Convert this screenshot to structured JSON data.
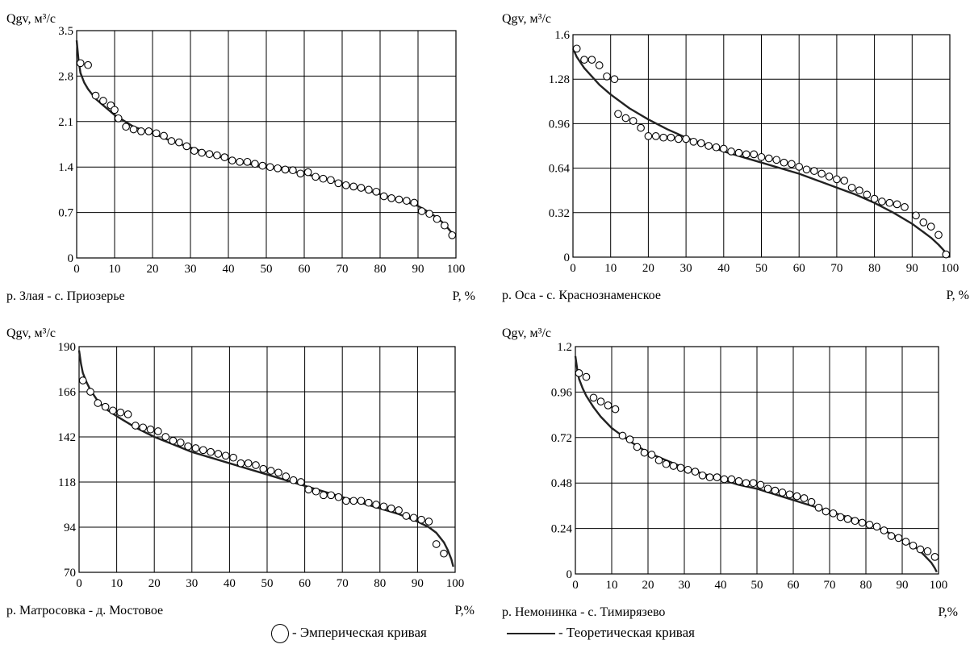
{
  "chart_data": [
    {
      "type": "scatter",
      "station": "р. Злая - с. Приозерье",
      "ylabel": "Qgv, м³/с",
      "xlabel": "P, %",
      "xlim": [
        0,
        100
      ],
      "ylim": [
        0,
        3.5
      ],
      "x_ticks": [
        0,
        10,
        20,
        30,
        40,
        50,
        60,
        70,
        80,
        90,
        100
      ],
      "y_ticks": [
        "0",
        "0.7",
        "1.4",
        "2.1",
        "2.8",
        "3.5"
      ],
      "grid": true,
      "series": [
        {
          "name": "Эмперическая кривая",
          "kind": "points",
          "x": [
            1,
            3,
            5,
            7,
            9,
            10,
            11,
            13,
            15,
            17,
            19,
            21,
            23,
            25,
            27,
            29,
            31,
            33,
            35,
            37,
            39,
            41,
            43,
            45,
            47,
            49,
            51,
            53,
            55,
            57,
            59,
            61,
            63,
            65,
            67,
            69,
            71,
            73,
            75,
            77,
            79,
            81,
            83,
            85,
            87,
            89,
            91,
            93,
            95,
            97,
            99
          ],
          "y": [
            3.0,
            2.97,
            2.5,
            2.42,
            2.35,
            2.28,
            2.15,
            2.02,
            1.98,
            1.95,
            1.95,
            1.92,
            1.88,
            1.8,
            1.78,
            1.72,
            1.65,
            1.62,
            1.6,
            1.58,
            1.55,
            1.5,
            1.48,
            1.48,
            1.45,
            1.42,
            1.4,
            1.38,
            1.36,
            1.35,
            1.3,
            1.32,
            1.25,
            1.22,
            1.2,
            1.15,
            1.12,
            1.1,
            1.08,
            1.05,
            1.02,
            0.95,
            0.92,
            0.9,
            0.88,
            0.85,
            0.72,
            0.68,
            0.6,
            0.5,
            0.35
          ]
        },
        {
          "name": "Теоретическая кривая",
          "kind": "line",
          "x": [
            0,
            0.5,
            1,
            2,
            3,
            5,
            7,
            10,
            15,
            20,
            25,
            30,
            35,
            40,
            45,
            50,
            55,
            60,
            65,
            70,
            75,
            80,
            85,
            90,
            93,
            95,
            97,
            98,
            99,
            99.5
          ],
          "y": [
            3.35,
            3.05,
            2.85,
            2.7,
            2.6,
            2.45,
            2.35,
            2.2,
            2.02,
            1.92,
            1.8,
            1.7,
            1.6,
            1.52,
            1.45,
            1.4,
            1.35,
            1.3,
            1.22,
            1.15,
            1.07,
            0.98,
            0.9,
            0.8,
            0.7,
            0.62,
            0.52,
            0.45,
            0.38,
            0.3
          ]
        }
      ]
    },
    {
      "type": "scatter",
      "station": "р. Оса - с. Краснознаменское",
      "ylabel": "Qgv, м³/с",
      "xlabel": "P, %",
      "xlim": [
        0,
        100
      ],
      "ylim": [
        0,
        1.6
      ],
      "x_ticks": [
        0,
        10,
        20,
        30,
        40,
        50,
        60,
        70,
        80,
        90,
        100
      ],
      "y_ticks": [
        "0",
        "0.32",
        "0.64",
        "0.96",
        "1.28",
        "1.6"
      ],
      "grid": true,
      "series": [
        {
          "name": "Эмперическая кривая",
          "kind": "points",
          "x": [
            1,
            3,
            5,
            7,
            9,
            11,
            12,
            14,
            16,
            18,
            20,
            22,
            24,
            26,
            28,
            30,
            32,
            34,
            36,
            38,
            40,
            42,
            44,
            46,
            48,
            50,
            52,
            54,
            56,
            58,
            60,
            62,
            64,
            66,
            68,
            70,
            72,
            74,
            76,
            78,
            80,
            82,
            84,
            86,
            88,
            91,
            93,
            95,
            97,
            99
          ],
          "y": [
            1.5,
            1.42,
            1.42,
            1.38,
            1.3,
            1.28,
            1.03,
            1.0,
            0.98,
            0.93,
            0.87,
            0.87,
            0.86,
            0.86,
            0.85,
            0.85,
            0.83,
            0.82,
            0.8,
            0.79,
            0.78,
            0.76,
            0.75,
            0.74,
            0.74,
            0.72,
            0.71,
            0.7,
            0.68,
            0.67,
            0.65,
            0.63,
            0.62,
            0.6,
            0.58,
            0.56,
            0.55,
            0.5,
            0.48,
            0.45,
            0.42,
            0.4,
            0.39,
            0.38,
            0.36,
            0.3,
            0.25,
            0.22,
            0.16,
            0.02
          ]
        },
        {
          "name": "Теоретическая кривая",
          "kind": "line",
          "x": [
            0,
            1,
            2,
            3,
            5,
            7,
            10,
            15,
            20,
            25,
            30,
            35,
            40,
            45,
            50,
            55,
            60,
            65,
            70,
            75,
            80,
            85,
            90,
            93,
            95,
            97,
            98,
            99,
            99.5
          ],
          "y": [
            1.5,
            1.44,
            1.4,
            1.36,
            1.3,
            1.24,
            1.17,
            1.07,
            0.99,
            0.92,
            0.86,
            0.81,
            0.76,
            0.72,
            0.68,
            0.64,
            0.6,
            0.55,
            0.5,
            0.45,
            0.39,
            0.32,
            0.24,
            0.18,
            0.14,
            0.09,
            0.06,
            0.03,
            0.01
          ]
        }
      ]
    },
    {
      "type": "scatter",
      "station": "р. Матросовка - д. Мостовое",
      "ylabel": "Qgv, м³/с",
      "xlabel": "P,%",
      "xlim": [
        0,
        100
      ],
      "ylim": [
        70,
        190
      ],
      "x_ticks": [
        0,
        10,
        20,
        30,
        40,
        50,
        60,
        70,
        80,
        90,
        100
      ],
      "y_ticks": [
        "70",
        "94",
        "118",
        "142",
        "166",
        "190"
      ],
      "grid": true,
      "series": [
        {
          "name": "Эмперическая кривая",
          "kind": "points",
          "x": [
            1,
            3,
            5,
            7,
            9,
            11,
            13,
            15,
            17,
            19,
            21,
            23,
            25,
            27,
            29,
            31,
            33,
            35,
            37,
            39,
            41,
            43,
            45,
            47,
            49,
            51,
            53,
            55,
            57,
            59,
            61,
            63,
            65,
            67,
            69,
            71,
            73,
            75,
            77,
            79,
            81,
            83,
            85,
            87,
            89,
            91,
            93,
            95,
            97
          ],
          "y": [
            172,
            166,
            160,
            158,
            156,
            155,
            154,
            148,
            147,
            146,
            145,
            142,
            140,
            139,
            137,
            136,
            135,
            134,
            133,
            132,
            131,
            128,
            128,
            127,
            125,
            124,
            123,
            121,
            119,
            118,
            114,
            113,
            111,
            111,
            110,
            108,
            108,
            108,
            107,
            106,
            105,
            104,
            103,
            100,
            99,
            98,
            97,
            85,
            80
          ]
        },
        {
          "name": "Теоретическая кривая",
          "kind": "line",
          "x": [
            0,
            0.5,
            1,
            2,
            3,
            5,
            7,
            10,
            15,
            20,
            25,
            30,
            35,
            40,
            45,
            50,
            55,
            60,
            65,
            70,
            75,
            80,
            85,
            90,
            93,
            95,
            97,
            98,
            99,
            99.5
          ],
          "y": [
            188,
            181,
            176,
            171,
            167,
            161,
            157,
            153,
            147,
            142,
            138,
            134,
            131,
            128,
            125,
            122,
            119,
            116,
            113,
            110,
            107,
            104,
            101,
            97,
            94,
            91,
            86,
            82,
            77,
            73
          ]
        }
      ]
    },
    {
      "type": "scatter",
      "station": "р. Немонинка - с. Тимирязево",
      "ylabel": "Qgv, м³/с",
      "xlabel": "P,%",
      "xlim": [
        0,
        100
      ],
      "ylim": [
        0,
        1.2
      ],
      "x_ticks": [
        0,
        10,
        20,
        30,
        40,
        50,
        60,
        70,
        80,
        90,
        100
      ],
      "y_ticks": [
        "0",
        "0.24",
        "0.48",
        "0.72",
        "0.96",
        "1.2"
      ],
      "grid": true,
      "series": [
        {
          "name": "Эмперическая кривая",
          "kind": "points",
          "x": [
            1,
            3,
            5,
            7,
            9,
            11,
            13,
            15,
            17,
            19,
            21,
            23,
            25,
            27,
            29,
            31,
            33,
            35,
            37,
            39,
            41,
            43,
            45,
            47,
            49,
            51,
            53,
            55,
            57,
            59,
            61,
            63,
            65,
            67,
            69,
            71,
            73,
            75,
            77,
            79,
            81,
            83,
            85,
            87,
            89,
            91,
            93,
            95,
            97,
            99
          ],
          "y": [
            1.06,
            1.04,
            0.93,
            0.91,
            0.89,
            0.87,
            0.73,
            0.71,
            0.67,
            0.64,
            0.63,
            0.6,
            0.58,
            0.57,
            0.56,
            0.55,
            0.54,
            0.52,
            0.51,
            0.51,
            0.5,
            0.5,
            0.49,
            0.48,
            0.48,
            0.47,
            0.45,
            0.44,
            0.43,
            0.42,
            0.41,
            0.4,
            0.38,
            0.35,
            0.33,
            0.32,
            0.3,
            0.29,
            0.28,
            0.27,
            0.26,
            0.25,
            0.23,
            0.2,
            0.19,
            0.17,
            0.15,
            0.13,
            0.12,
            0.09
          ]
        },
        {
          "name": "Теоретическая кривая",
          "kind": "line",
          "x": [
            0,
            0.5,
            1,
            2,
            3,
            5,
            7,
            10,
            15,
            20,
            25,
            30,
            35,
            40,
            45,
            50,
            55,
            60,
            65,
            70,
            75,
            80,
            85,
            90,
            93,
            95,
            97,
            98,
            99,
            99.5
          ],
          "y": [
            1.15,
            1.08,
            1.03,
            0.98,
            0.94,
            0.88,
            0.83,
            0.77,
            0.7,
            0.64,
            0.6,
            0.56,
            0.53,
            0.5,
            0.47,
            0.45,
            0.42,
            0.39,
            0.36,
            0.33,
            0.3,
            0.27,
            0.23,
            0.18,
            0.15,
            0.12,
            0.08,
            0.06,
            0.03,
            0.01
          ]
        }
      ]
    }
  ],
  "legend": {
    "empirical_label": "- Эмперическая кривая",
    "theoretical_label": "- Теоретическая кривая"
  }
}
